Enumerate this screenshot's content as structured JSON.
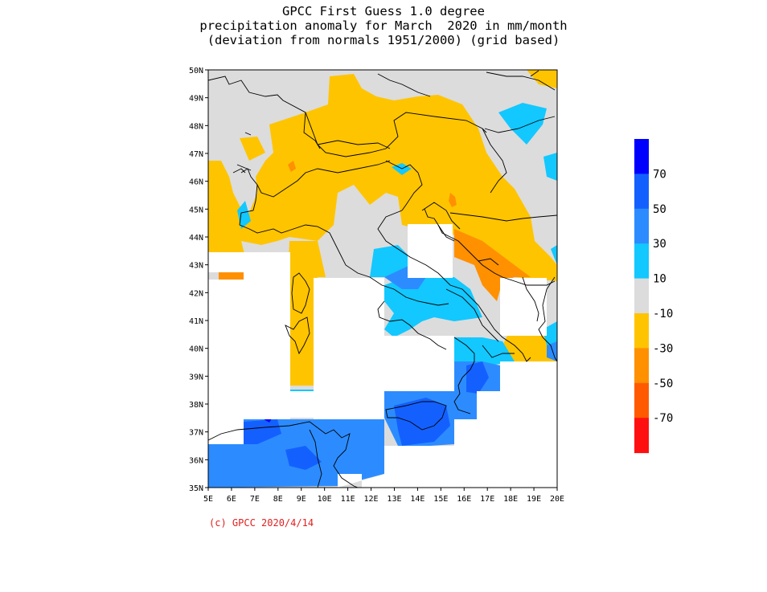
{
  "title": {
    "line1": "GPCC First Guess 1.0 degree",
    "line2": "precipitation anomaly for March  2020 in mm/month",
    "line3": "(deviation from normals 1951/2000) (grid based)"
  },
  "map": {
    "lon_range": [
      5,
      20
    ],
    "lat_range": [
      35,
      50
    ],
    "lon_ticks": [
      "5E",
      "6E",
      "7E",
      "8E",
      "9E",
      "10E",
      "11E",
      "12E",
      "13E",
      "14E",
      "15E",
      "16E",
      "17E",
      "18E",
      "19E",
      "20E"
    ],
    "lat_ticks": [
      "35N",
      "36N",
      "37N",
      "38N",
      "39N",
      "40N",
      "41N",
      "42N",
      "43N",
      "44N",
      "45N",
      "46N",
      "47N",
      "48N",
      "49N",
      "50N"
    ],
    "background_color": "#dcdcdc"
  },
  "colorbar": {
    "labels": [
      "70",
      "50",
      "30",
      "10",
      "-10",
      "-30",
      "-50",
      "-70"
    ],
    "colors": [
      "#0000ff",
      "#1460ff",
      "#2c8cff",
      "#12c8ff",
      "#dcdcdc",
      "#ffc400",
      "#ff9000",
      "#ff5a00",
      "#ff1010"
    ]
  },
  "copyright": "(c) GPCC 2020/4/14"
}
